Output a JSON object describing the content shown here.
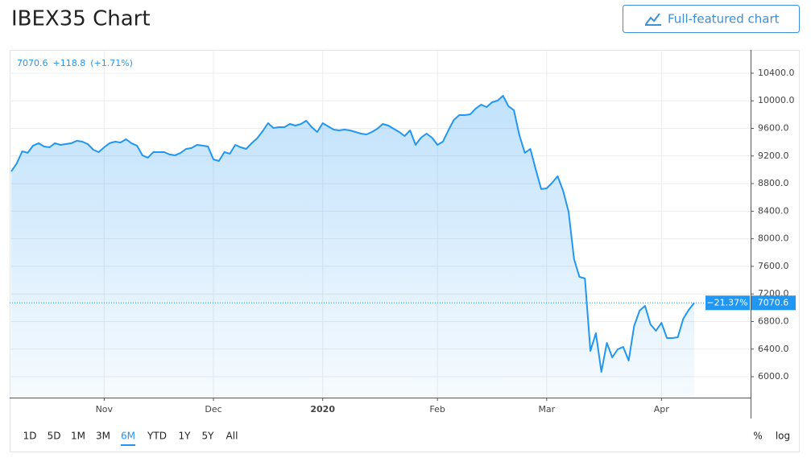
{
  "title": "IBEX35 Chart",
  "button": "Full-featured chart",
  "chart_data": {
    "type": "area",
    "legend_change": "+118.8",
    "legend_change_percent": "(+1.71%)",
    "period_change": "−21.37%",
    "color": "#2196f3",
    "categories": [
      null,
      null,
      null,
      null,
      null,
      null,
      null,
      null,
      null,
      null,
      null,
      null,
      null,
      null,
      null,
      null,
      null,
      "Nov",
      null,
      null,
      null,
      null,
      null,
      null,
      null,
      null,
      null,
      null,
      null,
      null,
      null,
      null,
      null,
      null,
      null,
      null,
      null,
      "Dec",
      null,
      null,
      null,
      null,
      null,
      null,
      null,
      null,
      null,
      null,
      null,
      null,
      null,
      null,
      null,
      null,
      null,
      null,
      null,
      "2020",
      null,
      null,
      null,
      null,
      null,
      null,
      null,
      null,
      null,
      null,
      null,
      null,
      null,
      null,
      null,
      null,
      null,
      null,
      null,
      null,
      "Feb",
      null,
      null,
      null,
      null,
      null,
      null,
      null,
      null,
      null,
      null,
      null,
      null,
      null,
      null,
      null,
      null,
      null,
      null,
      null,
      "Mar",
      null,
      null,
      null,
      null,
      null,
      null,
      null,
      null,
      null,
      null,
      null,
      null,
      null,
      null,
      null,
      null,
      null,
      null,
      null,
      null,
      "Apr",
      null,
      null,
      null,
      null,
      null,
      null
    ],
    "values": [
      8976,
      9093,
      9268,
      9245,
      9350,
      9385,
      9338,
      9326,
      9385,
      9361,
      9373,
      9385,
      9420,
      9408,
      9373,
      9291,
      9256,
      9326,
      9385,
      9408,
      9396,
      9443,
      9385,
      9350,
      9210,
      9175,
      9256,
      9256,
      9256,
      9221,
      9210,
      9245,
      9303,
      9315,
      9361,
      9350,
      9338,
      9151,
      9128,
      9256,
      9233,
      9361,
      9326,
      9303,
      9385,
      9455,
      9560,
      9676,
      9606,
      9618,
      9618,
      9665,
      9641,
      9665,
      9711,
      9618,
      9548,
      9676,
      9630,
      9583,
      9571,
      9583,
      9571,
      9548,
      9525,
      9513,
      9548,
      9595,
      9665,
      9641,
      9595,
      9548,
      9490,
      9571,
      9361,
      9466,
      9525,
      9466,
      9361,
      9408,
      9571,
      9723,
      9793,
      9793,
      9805,
      9887,
      9945,
      9910,
      9980,
      10003,
      10073,
      9922,
      9863,
      9501,
      9245,
      9303,
      9000,
      8720,
      8731,
      8813,
      8906,
      8696,
      8393,
      7704,
      7447,
      7424,
      6374,
      6631,
      6070,
      6491,
      6280,
      6397,
      6432,
      6234,
      6736,
      6957,
      7027,
      6759,
      6666,
      6782,
      6561,
      6561,
      6572,
      6841,
      6969,
      7070.6
    ],
    "ylim": [
      5697,
      10738
    ],
    "yticks": [
      {
        "value": 6000,
        "label": "6000.0"
      },
      {
        "value": 6400,
        "label": "6400.0"
      },
      {
        "value": 6800,
        "label": "6800.0"
      },
      {
        "value": 7200,
        "label": "7200.0"
      },
      {
        "value": 7600,
        "label": "7600.0"
      },
      {
        "value": 8000,
        "label": "8000.0"
      },
      {
        "value": 8400,
        "label": "8400.0"
      },
      {
        "value": 8800,
        "label": "8800.0"
      },
      {
        "value": 9200,
        "label": "9200.0"
      },
      {
        "value": 9600,
        "label": "9600.0"
      },
      {
        "value": 10000,
        "label": "10000.0"
      },
      {
        "value": 10400,
        "label": "10400.0"
      }
    ],
    "grid": true
  },
  "ranges": [
    "1D",
    "5D",
    "1M",
    "3M",
    "6M",
    "YTD",
    "1Y",
    "5Y",
    "All"
  ],
  "active_range": 4,
  "scale_buttons": [
    "%",
    "log"
  ]
}
